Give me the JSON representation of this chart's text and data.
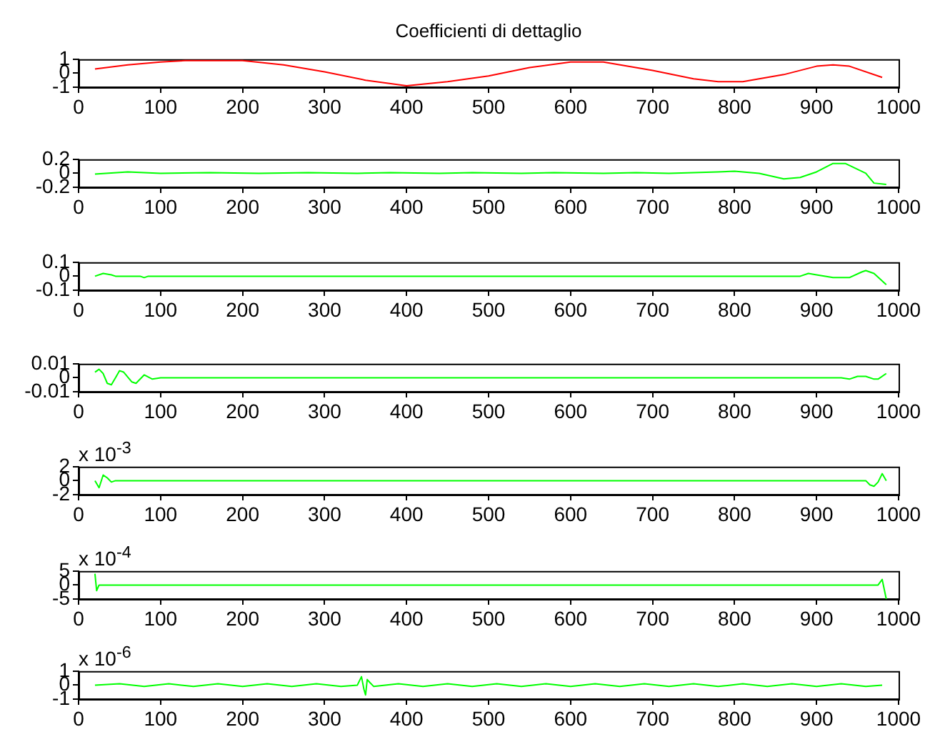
{
  "chart_data": [
    {
      "type": "line",
      "title": "Coefficienti di dettaglio",
      "xlim": [
        0,
        1000
      ],
      "xticks": [
        0,
        100,
        200,
        300,
        400,
        500,
        600,
        700,
        800,
        900,
        1000
      ],
      "ylim": [
        -1,
        1
      ],
      "yticks": [
        -1,
        0,
        1
      ],
      "grid": false,
      "legend": false,
      "marker": "none",
      "line_style": "solid",
      "series": [
        {
          "color": "#ff0000",
          "x": [
            20,
            60,
            100,
            130,
            200,
            250,
            300,
            350,
            400,
            450,
            500,
            550,
            600,
            640,
            700,
            750,
            780,
            810,
            860,
            900,
            920,
            940,
            980
          ],
          "values": [
            0.3,
            0.6,
            0.8,
            0.9,
            0.9,
            0.6,
            0.1,
            -0.5,
            -0.9,
            -0.6,
            -0.2,
            0.4,
            0.8,
            0.8,
            0.2,
            -0.4,
            -0.6,
            -0.6,
            -0.1,
            0.5,
            0.6,
            0.5,
            -0.3
          ]
        }
      ]
    },
    {
      "type": "line",
      "xlim": [
        0,
        1000
      ],
      "xticks": [
        0,
        100,
        200,
        300,
        400,
        500,
        600,
        700,
        800,
        900,
        1000
      ],
      "ylim": [
        -0.2,
        0.2
      ],
      "yticks": [
        -0.2,
        0,
        0.2
      ],
      "grid": false,
      "legend": false,
      "marker": "none",
      "line_style": "solid",
      "series": [
        {
          "color": "#00ff00",
          "x": [
            20,
            60,
            100,
            160,
            220,
            280,
            340,
            380,
            440,
            480,
            540,
            580,
            640,
            680,
            720,
            780,
            800,
            830,
            860,
            880,
            900,
            920,
            935,
            960,
            970,
            985
          ],
          "values": [
            -0.01,
            0.02,
            0.0,
            0.01,
            0.0,
            0.01,
            0.0,
            0.01,
            0.0,
            0.01,
            0.0,
            0.01,
            0.0,
            0.01,
            0.0,
            0.02,
            0.03,
            0.0,
            -0.08,
            -0.06,
            0.02,
            0.14,
            0.14,
            0.0,
            -0.14,
            -0.16
          ]
        }
      ]
    },
    {
      "type": "line",
      "xlim": [
        0,
        1000
      ],
      "xticks": [
        0,
        100,
        200,
        300,
        400,
        500,
        600,
        700,
        800,
        900,
        1000
      ],
      "ylim": [
        -0.1,
        0.1
      ],
      "yticks": [
        -0.1,
        0,
        0.1
      ],
      "grid": false,
      "legend": false,
      "marker": "none",
      "line_style": "solid",
      "series": [
        {
          "color": "#00ff00",
          "x": [
            20,
            30,
            40,
            45,
            75,
            80,
            85,
            880,
            890,
            900,
            920,
            940,
            955,
            960,
            970,
            985
          ],
          "values": [
            0,
            0.02,
            0.01,
            0,
            0,
            -0.01,
            0,
            0,
            0.02,
            0.01,
            -0.01,
            -0.01,
            0.03,
            0.04,
            0.02,
            -0.06
          ]
        }
      ]
    },
    {
      "type": "line",
      "xlim": [
        0,
        1000
      ],
      "xticks": [
        0,
        100,
        200,
        300,
        400,
        500,
        600,
        700,
        800,
        900,
        1000
      ],
      "ylim": [
        -0.01,
        0.01
      ],
      "yticks": [
        -0.01,
        0,
        0.01
      ],
      "grid": false,
      "legend": false,
      "marker": "none",
      "line_style": "solid",
      "series": [
        {
          "color": "#00ff00",
          "x": [
            20,
            25,
            30,
            35,
            40,
            45,
            50,
            55,
            65,
            70,
            80,
            90,
            100,
            930,
            940,
            950,
            960,
            970,
            975,
            985
          ],
          "values": [
            0.004,
            0.006,
            0.003,
            -0.004,
            -0.005,
            0,
            0.005,
            0.004,
            -0.003,
            -0.004,
            0.002,
            -0.001,
            0,
            0,
            -0.001,
            0.001,
            0.001,
            -0.001,
            -0.001,
            0.003
          ]
        }
      ]
    },
    {
      "type": "line",
      "annotations": [
        "x 10$^{-3}$"
      ],
      "xlim": [
        0,
        1000
      ],
      "xticks": [
        0,
        100,
        200,
        300,
        400,
        500,
        600,
        700,
        800,
        900,
        1000
      ],
      "ylim": [
        -2,
        2
      ],
      "yticks": [
        -2,
        0,
        2
      ],
      "grid": false,
      "legend": false,
      "marker": "none",
      "line_style": "solid",
      "series": [
        {
          "color": "#00ff00",
          "x": [
            20,
            25,
            30,
            35,
            40,
            45,
            50,
            960,
            965,
            970,
            975,
            980,
            985
          ],
          "values": [
            0,
            -1,
            0.8,
            0.4,
            -0.2,
            0,
            0,
            0,
            -0.6,
            -0.8,
            -0.2,
            1,
            0
          ]
        }
      ]
    },
    {
      "type": "line",
      "annotations": [
        "x 10$^{-4}$"
      ],
      "xlim": [
        0,
        1000
      ],
      "xticks": [
        0,
        100,
        200,
        300,
        400,
        500,
        600,
        700,
        800,
        900,
        1000
      ],
      "ylim": [
        -5,
        5
      ],
      "yticks": [
        -5,
        0,
        5
      ],
      "grid": false,
      "legend": false,
      "marker": "none",
      "line_style": "solid",
      "series": [
        {
          "color": "#00ff00",
          "x": [
            20,
            22,
            25,
            975,
            980,
            985
          ],
          "values": [
            4,
            -2,
            0,
            0,
            2,
            -5
          ]
        }
      ]
    },
    {
      "type": "line",
      "annotations": [
        "x 10$^{-6}$"
      ],
      "xlim": [
        0,
        1000
      ],
      "xticks": [
        0,
        100,
        200,
        300,
        400,
        500,
        600,
        700,
        800,
        900,
        1000
      ],
      "ylim": [
        -1,
        1
      ],
      "yticks": [
        -1,
        0,
        1
      ],
      "grid": false,
      "legend": false,
      "marker": "none",
      "line_style": "solid",
      "series": [
        {
          "color": "#00ff00",
          "x": [
            20,
            50,
            80,
            110,
            140,
            170,
            200,
            230,
            260,
            290,
            320,
            340,
            345,
            348,
            350,
            352,
            355,
            360,
            390,
            420,
            450,
            480,
            510,
            540,
            570,
            600,
            630,
            660,
            690,
            720,
            750,
            780,
            810,
            840,
            870,
            900,
            930,
            960,
            980
          ],
          "values": [
            0,
            0.1,
            -0.1,
            0.1,
            -0.1,
            0.1,
            -0.1,
            0.1,
            -0.1,
            0.1,
            -0.1,
            0,
            0.6,
            -0.3,
            -0.7,
            0.4,
            0.2,
            -0.1,
            0.1,
            -0.1,
            0.1,
            -0.1,
            0.1,
            -0.1,
            0.1,
            -0.1,
            0.1,
            -0.1,
            0.1,
            -0.1,
            0.1,
            -0.1,
            0.1,
            -0.1,
            0.1,
            -0.1,
            0.1,
            -0.1,
            0
          ]
        }
      ]
    }
  ]
}
